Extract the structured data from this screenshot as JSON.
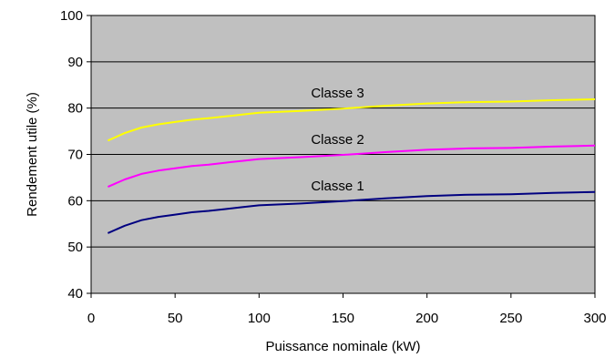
{
  "chart_data": {
    "type": "line",
    "title": "",
    "xlabel": "Puissance nominale (kW)",
    "ylabel": "Rendement utile (%)",
    "xlim": [
      0,
      300
    ],
    "ylim": [
      40,
      100
    ],
    "x_ticks": [
      0,
      50,
      100,
      150,
      200,
      250,
      300
    ],
    "y_ticks": [
      40,
      50,
      60,
      70,
      80,
      90,
      100
    ],
    "grid": true,
    "plot_background": "#c0c0c0",
    "legend": "none (inline series labels)",
    "series": [
      {
        "name": "Classe 3",
        "color": "#ffff00",
        "x": [
          10,
          20,
          30,
          40,
          50,
          60,
          70,
          80,
          90,
          100,
          125,
          150,
          175,
          200,
          225,
          250,
          275,
          300
        ],
        "y": [
          73.0,
          74.6,
          75.8,
          76.5,
          77.0,
          77.5,
          77.8,
          78.2,
          78.6,
          79.0,
          79.4,
          79.9,
          80.5,
          81.0,
          81.3,
          81.4,
          81.7,
          81.9
        ]
      },
      {
        "name": "Classe 2",
        "color": "#ff00ff",
        "x": [
          10,
          20,
          30,
          40,
          50,
          60,
          70,
          80,
          90,
          100,
          125,
          150,
          175,
          200,
          225,
          250,
          275,
          300
        ],
        "y": [
          63.0,
          64.6,
          65.8,
          66.5,
          67.0,
          67.5,
          67.8,
          68.2,
          68.6,
          69.0,
          69.4,
          69.9,
          70.5,
          71.0,
          71.3,
          71.4,
          71.7,
          71.9
        ]
      },
      {
        "name": "Classe 1",
        "color": "#000080",
        "x": [
          10,
          20,
          30,
          40,
          50,
          60,
          70,
          80,
          90,
          100,
          125,
          150,
          175,
          200,
          225,
          250,
          275,
          300
        ],
        "y": [
          53.0,
          54.6,
          55.8,
          56.5,
          57.0,
          57.5,
          57.8,
          58.2,
          58.6,
          59.0,
          59.4,
          59.9,
          60.5,
          61.0,
          61.3,
          61.4,
          61.7,
          61.9
        ]
      }
    ]
  }
}
